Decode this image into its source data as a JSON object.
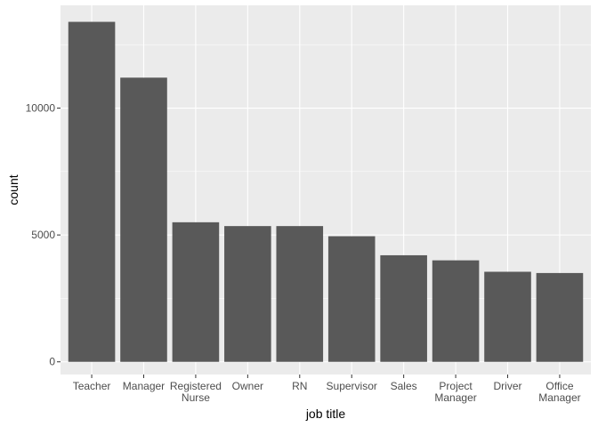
{
  "chart_data": {
    "type": "bar",
    "xlabel": "job title",
    "ylabel": "count",
    "categories": [
      [
        "Teacher"
      ],
      [
        "Manager"
      ],
      [
        "Registered",
        "Nurse"
      ],
      [
        "Owner"
      ],
      [
        "RN"
      ],
      [
        "Supervisor"
      ],
      [
        "Sales"
      ],
      [
        "Project",
        "Manager"
      ],
      [
        "Driver"
      ],
      [
        "Office",
        "Manager"
      ]
    ],
    "values": [
      13400,
      11200,
      5500,
      5350,
      5350,
      4950,
      4200,
      4000,
      3550,
      3500
    ],
    "ylim": [
      -500,
      14050
    ],
    "y_ticks": [
      0,
      5000,
      10000
    ],
    "y_tick_labels": [
      "0",
      "5000",
      "10000"
    ],
    "grid": true,
    "colors": {
      "panel_background": "#ebebeb",
      "grid_major": "#ffffff",
      "bar_fill": "#595959",
      "tick_text": "#4d4d4d",
      "tick_mark": "#333333"
    }
  }
}
